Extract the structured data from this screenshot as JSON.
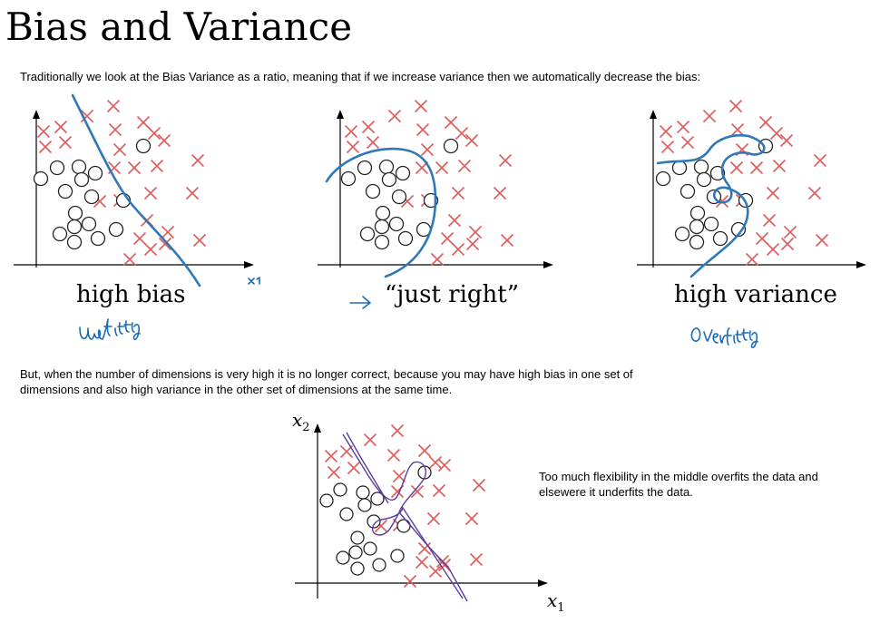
{
  "page": {
    "title": "Bias and Variance",
    "intro": "Traditionally we look at the Bias Variance as a ratio, meaning that if we increase variance then we automatically decrease the bias:",
    "second_paragraph": "But, when the number of dimensions is very high it is no longer correct, because you may have high bias in one set of dimensions and also high variance in the other set of dimensions at the same time.",
    "side_note": "Too much flexibility in the middle overfits the data and elsewere it underfits the data."
  },
  "panels": [
    {
      "caption": "high bias",
      "handwritten_note": "underfitting"
    },
    {
      "caption": "“just right”",
      "handwritten_note": ""
    },
    {
      "caption": "high variance",
      "handwritten_note": "overfitting"
    }
  ],
  "bottom_plot": {
    "x_label": "x",
    "x_sub": "1",
    "y_label": "x",
    "y_sub": "2"
  },
  "colors": {
    "cross": "#e05a5a",
    "boundary": "#2f78b8",
    "bottom_boundary": "#5a3e9a",
    "circle": "#222222"
  }
}
